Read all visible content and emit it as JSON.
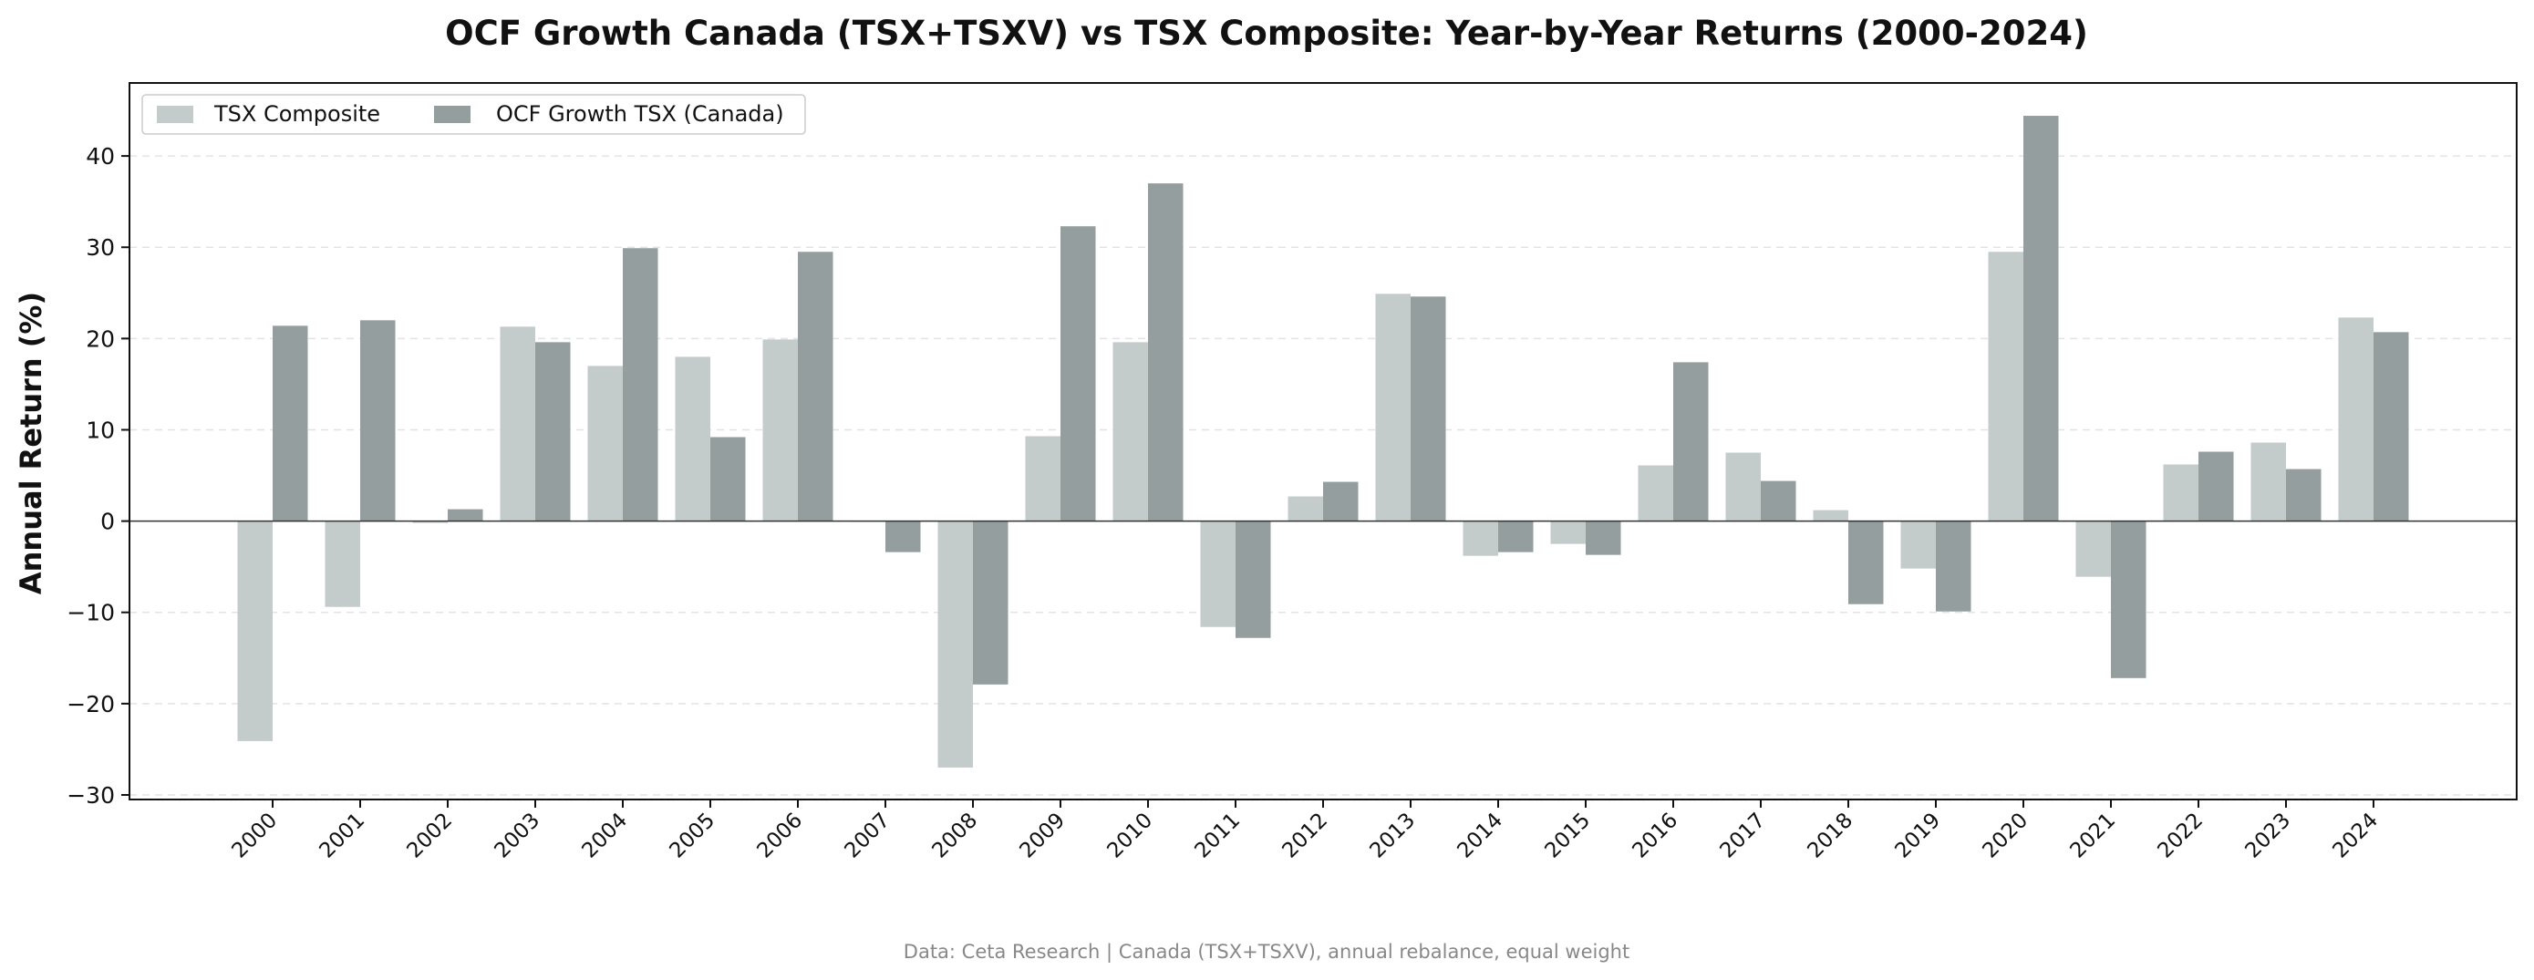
{
  "chart_data": {
    "type": "bar",
    "title": "OCF Growth Canada (TSX+TSXV) vs TSX Composite: Year-by-Year Returns (2000-2024)",
    "ylabel": "Annual Return (%)",
    "xlabel": "",
    "ylim": [
      -30.5,
      48
    ],
    "yticks": [
      -30,
      -20,
      -10,
      0,
      10,
      20,
      30,
      40
    ],
    "grid": "horizontal dashed",
    "legend": "top-left",
    "categories": [
      "2000",
      "2001",
      "2002",
      "2003",
      "2004",
      "2005",
      "2006",
      "2007",
      "2008",
      "2009",
      "2010",
      "2011",
      "2012",
      "2013",
      "2014",
      "2015",
      "2016",
      "2017",
      "2018",
      "2019",
      "2020",
      "2021",
      "2022",
      "2023",
      "2024"
    ],
    "series": [
      {
        "name": "TSX Composite",
        "color": "#c4cbcb",
        "values": [
          -24.1,
          -9.4,
          -0.2,
          21.3,
          17.0,
          18.0,
          19.9,
          0.0,
          -27.0,
          9.3,
          19.6,
          -11.6,
          2.7,
          24.9,
          -3.8,
          -2.5,
          6.1,
          7.5,
          1.2,
          -5.2,
          29.5,
          -6.1,
          6.2,
          8.6,
          22.3
        ]
      },
      {
        "name": "OCF Growth TSX (Canada)",
        "color": "#949e9e",
        "values": [
          21.4,
          22.0,
          1.3,
          19.6,
          29.9,
          9.2,
          29.5,
          -3.4,
          -17.9,
          32.3,
          37.0,
          -12.8,
          4.3,
          24.6,
          -3.4,
          -3.7,
          17.4,
          4.4,
          -9.1,
          -9.9,
          44.4,
          -17.2,
          7.6,
          5.7,
          20.7
        ]
      }
    ],
    "footer": "Data: Ceta Research | Canada (TSX+TSXV), annual rebalance, equal weight"
  }
}
